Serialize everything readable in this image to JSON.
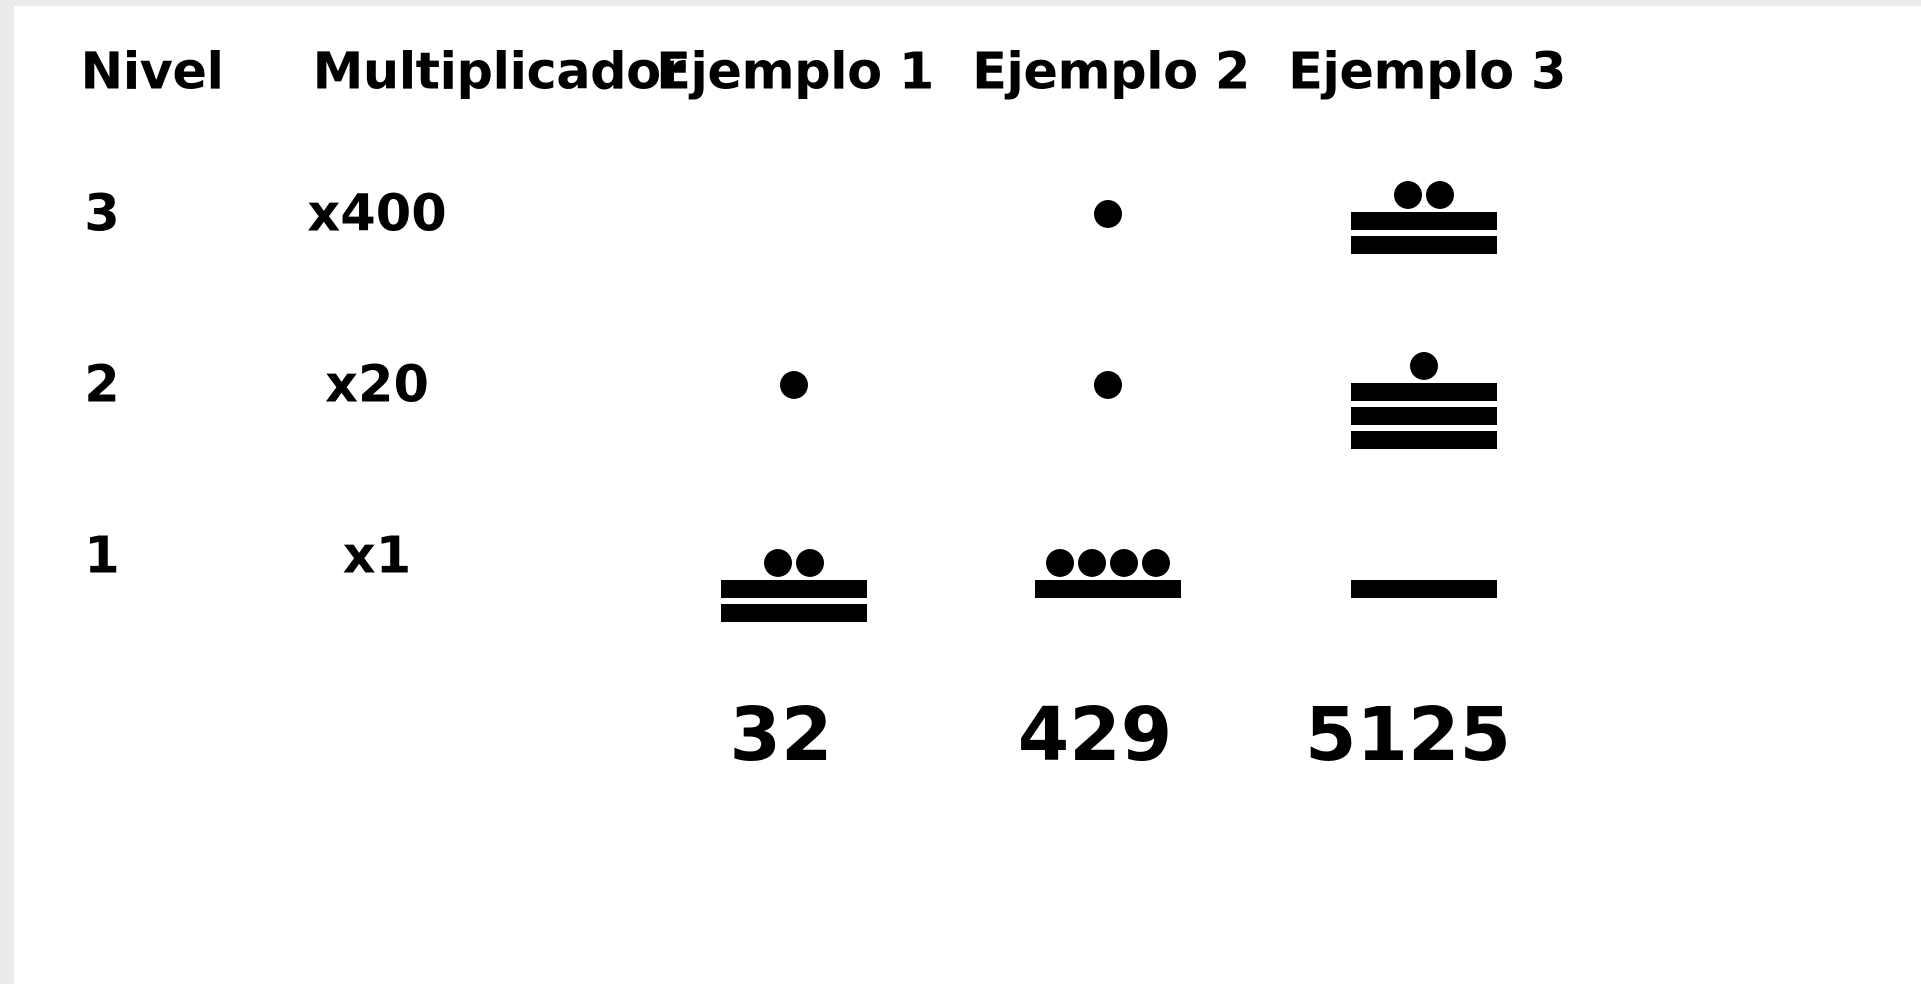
{
  "headers": {
    "level": "Nivel",
    "multiplier": "Multiplicador",
    "examples": [
      "Ejemplo 1",
      "Ejemplo 2",
      "Ejemplo 3"
    ]
  },
  "rows": [
    {
      "level": "3",
      "multiplier": "x400"
    },
    {
      "level": "2",
      "multiplier": "x20"
    },
    {
      "level": "1",
      "multiplier": "x1"
    }
  ],
  "examples": [
    {
      "total": "32",
      "digits": [
        {
          "level": 3,
          "bars": 0,
          "dots": 0
        },
        {
          "level": 2,
          "bars": 0,
          "dots": 1
        },
        {
          "level": 1,
          "bars": 2,
          "dots": 2
        }
      ]
    },
    {
      "total": "429",
      "digits": [
        {
          "level": 3,
          "bars": 0,
          "dots": 1
        },
        {
          "level": 2,
          "bars": 0,
          "dots": 1
        },
        {
          "level": 1,
          "bars": 1,
          "dots": 4
        }
      ]
    },
    {
      "total": "5125",
      "digits": [
        {
          "level": 3,
          "bars": 2,
          "dots": 2
        },
        {
          "level": 2,
          "bars": 3,
          "dots": 1
        },
        {
          "level": 1,
          "bars": 1,
          "dots": 0
        }
      ]
    }
  ]
}
